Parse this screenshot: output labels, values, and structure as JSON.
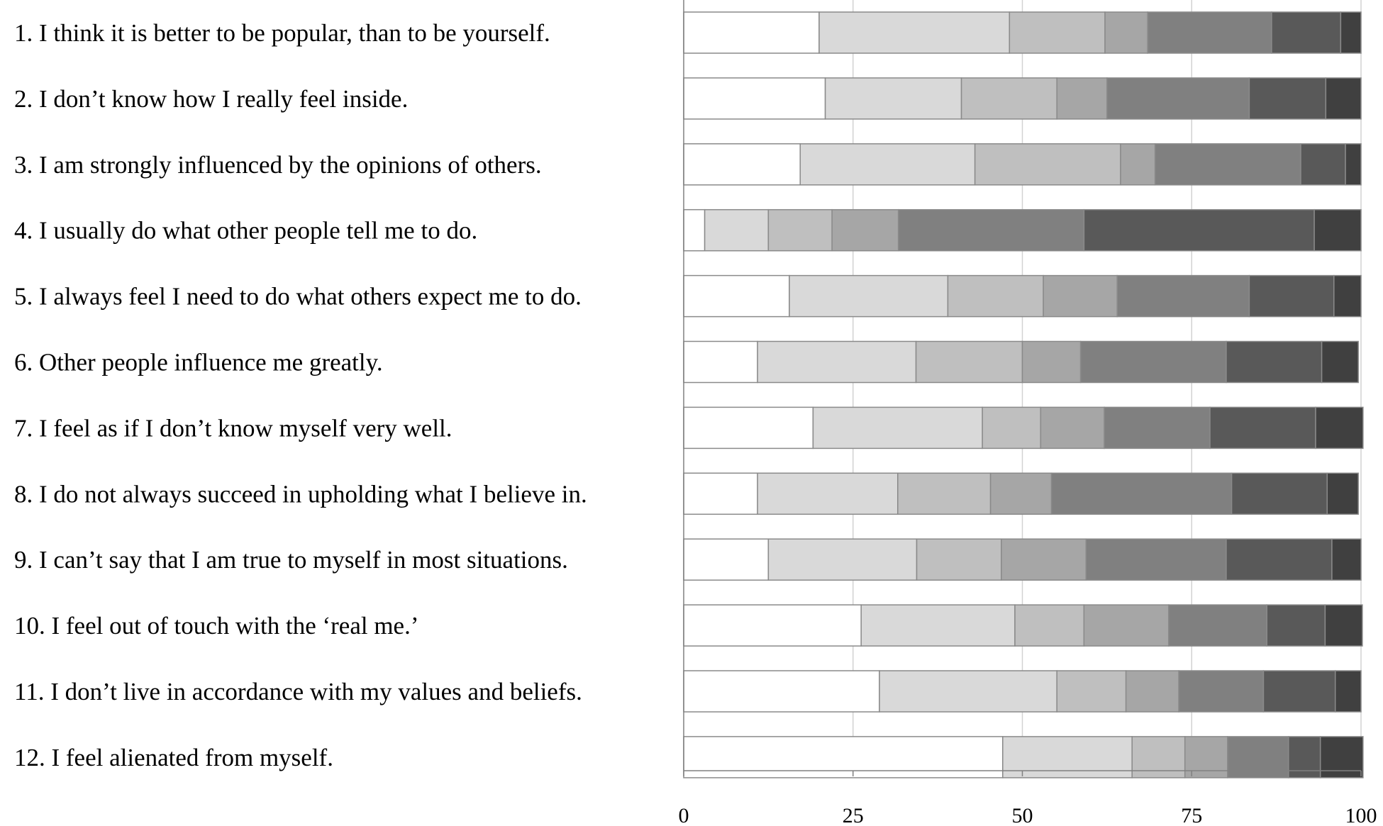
{
  "chart_data": {
    "type": "bar",
    "orientation": "horizontal",
    "stacked": true,
    "title": "",
    "xlabel": "",
    "ylabel": "",
    "xlim": [
      0,
      100
    ],
    "x_ticks": [
      "0",
      "25",
      "50",
      "75",
      "100"
    ],
    "grid": true,
    "legend": "none",
    "categories": [
      "1. I think it is better to be popular, than to be yourself.",
      "2. I don’t know how I really feel inside.",
      "3. I am strongly influenced by the opinions of others.",
      "4. I usually do what other people tell me to do.",
      "5. I always feel I need to do what others expect me to do.",
      "6. Other people influence me greatly.",
      "7. I feel as if I don’t know myself very well.",
      "8. I do not always succeed in upholding what I believe in.",
      "9. I can’t say that I am true to myself in most situations.",
      "10. I feel out of touch with the ‘real me.’",
      "11. I don’t live in accordance with my values and beliefs.",
      "12. I feel alienated from myself."
    ],
    "series": [
      {
        "color": "#ffffff",
        "values": [
          20.0,
          20.9,
          17.2,
          3.1,
          15.6,
          10.9,
          19.1,
          10.9,
          12.5,
          26.2,
          28.9,
          47.1
        ]
      },
      {
        "color": "#d9d9d9",
        "values": [
          28.1,
          20.1,
          25.8,
          9.4,
          23.4,
          23.4,
          25.0,
          20.7,
          21.9,
          22.7,
          26.2,
          19.1
        ]
      },
      {
        "color": "#bfbfbf",
        "values": [
          14.1,
          14.1,
          21.5,
          9.4,
          14.1,
          15.7,
          8.6,
          13.7,
          12.5,
          10.2,
          10.2,
          7.8
        ]
      },
      {
        "color": "#a6a6a6",
        "values": [
          6.3,
          7.4,
          5.1,
          9.8,
          10.9,
          8.6,
          9.4,
          9.0,
          12.5,
          12.5,
          7.8,
          6.3
        ]
      },
      {
        "color": "#808080",
        "values": [
          18.3,
          21.0,
          21.5,
          27.4,
          19.5,
          21.5,
          15.6,
          26.6,
          20.7,
          14.5,
          12.5,
          9.0
        ]
      },
      {
        "color": "#595959",
        "values": [
          10.2,
          11.3,
          6.6,
          34.0,
          12.5,
          14.1,
          15.6,
          14.1,
          15.6,
          8.6,
          10.6,
          4.7
        ]
      },
      {
        "color": "#404040",
        "values": [
          3.0,
          5.2,
          2.3,
          6.9,
          4.0,
          5.4,
          7.0,
          4.6,
          4.3,
          5.5,
          3.8,
          6.3
        ]
      }
    ]
  }
}
